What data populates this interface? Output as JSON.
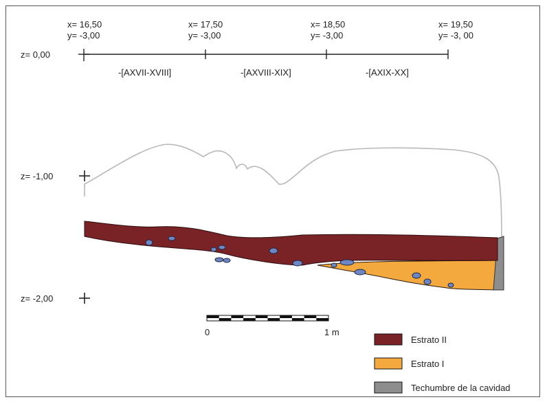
{
  "coordinates": [
    {
      "x": "x= 16,50",
      "y": "y= -3,00"
    },
    {
      "x": "x= 17,50",
      "y": "y= -3,00"
    },
    {
      "x": "x= 18,50",
      "y": "y= -3,00"
    },
    {
      "x": "x= 19,50",
      "y": "y= -3, 00"
    }
  ],
  "depths": [
    "z= 0,00",
    "z= -1,00",
    "z= -2,00"
  ],
  "squares": [
    "-[AXVII-XVIII]",
    "-[AXVIII-XIX]",
    "-[AXIX-XX]"
  ],
  "scale": {
    "start": "0",
    "end": "1 m"
  },
  "legend": [
    {
      "label": "Estrato II",
      "color": "#7a2326"
    },
    {
      "label": "Estrato I",
      "color": "#f4a93e"
    },
    {
      "label": "Techumbre de la cavidad",
      "color": "#8d8d8d"
    }
  ],
  "colors": {
    "stone": "#6f86c4",
    "outline": "#b8b8b8"
  }
}
